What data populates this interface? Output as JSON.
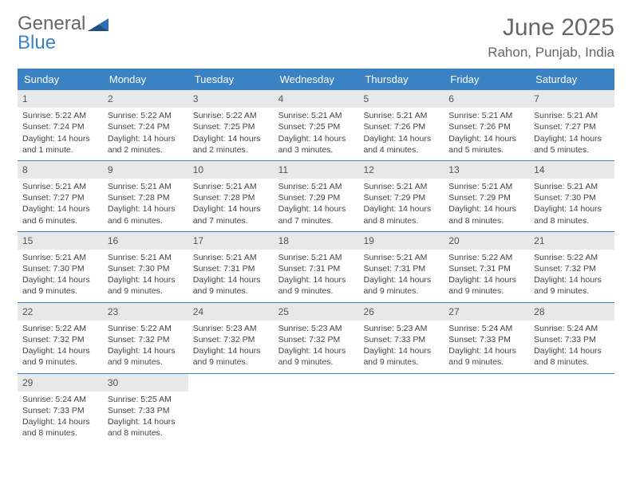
{
  "logo": {
    "word1": "General",
    "word2": "Blue",
    "triangle_color": "#2f6fb0"
  },
  "header": {
    "month_title": "June 2025",
    "location": "Rahon, Punjab, India"
  },
  "colors": {
    "accent": "#3b82c4",
    "daynum_bg": "#e8e8e8"
  },
  "day_labels": [
    "Sunday",
    "Monday",
    "Tuesday",
    "Wednesday",
    "Thursday",
    "Friday",
    "Saturday"
  ],
  "weeks": [
    [
      {
        "n": "1",
        "sr": "Sunrise: 5:22 AM",
        "ss": "Sunset: 7:24 PM",
        "dl": "Daylight: 14 hours and 1 minute."
      },
      {
        "n": "2",
        "sr": "Sunrise: 5:22 AM",
        "ss": "Sunset: 7:24 PM",
        "dl": "Daylight: 14 hours and 2 minutes."
      },
      {
        "n": "3",
        "sr": "Sunrise: 5:22 AM",
        "ss": "Sunset: 7:25 PM",
        "dl": "Daylight: 14 hours and 2 minutes."
      },
      {
        "n": "4",
        "sr": "Sunrise: 5:21 AM",
        "ss": "Sunset: 7:25 PM",
        "dl": "Daylight: 14 hours and 3 minutes."
      },
      {
        "n": "5",
        "sr": "Sunrise: 5:21 AM",
        "ss": "Sunset: 7:26 PM",
        "dl": "Daylight: 14 hours and 4 minutes."
      },
      {
        "n": "6",
        "sr": "Sunrise: 5:21 AM",
        "ss": "Sunset: 7:26 PM",
        "dl": "Daylight: 14 hours and 5 minutes."
      },
      {
        "n": "7",
        "sr": "Sunrise: 5:21 AM",
        "ss": "Sunset: 7:27 PM",
        "dl": "Daylight: 14 hours and 5 minutes."
      }
    ],
    [
      {
        "n": "8",
        "sr": "Sunrise: 5:21 AM",
        "ss": "Sunset: 7:27 PM",
        "dl": "Daylight: 14 hours and 6 minutes."
      },
      {
        "n": "9",
        "sr": "Sunrise: 5:21 AM",
        "ss": "Sunset: 7:28 PM",
        "dl": "Daylight: 14 hours and 6 minutes."
      },
      {
        "n": "10",
        "sr": "Sunrise: 5:21 AM",
        "ss": "Sunset: 7:28 PM",
        "dl": "Daylight: 14 hours and 7 minutes."
      },
      {
        "n": "11",
        "sr": "Sunrise: 5:21 AM",
        "ss": "Sunset: 7:29 PM",
        "dl": "Daylight: 14 hours and 7 minutes."
      },
      {
        "n": "12",
        "sr": "Sunrise: 5:21 AM",
        "ss": "Sunset: 7:29 PM",
        "dl": "Daylight: 14 hours and 8 minutes."
      },
      {
        "n": "13",
        "sr": "Sunrise: 5:21 AM",
        "ss": "Sunset: 7:29 PM",
        "dl": "Daylight: 14 hours and 8 minutes."
      },
      {
        "n": "14",
        "sr": "Sunrise: 5:21 AM",
        "ss": "Sunset: 7:30 PM",
        "dl": "Daylight: 14 hours and 8 minutes."
      }
    ],
    [
      {
        "n": "15",
        "sr": "Sunrise: 5:21 AM",
        "ss": "Sunset: 7:30 PM",
        "dl": "Daylight: 14 hours and 9 minutes."
      },
      {
        "n": "16",
        "sr": "Sunrise: 5:21 AM",
        "ss": "Sunset: 7:30 PM",
        "dl": "Daylight: 14 hours and 9 minutes."
      },
      {
        "n": "17",
        "sr": "Sunrise: 5:21 AM",
        "ss": "Sunset: 7:31 PM",
        "dl": "Daylight: 14 hours and 9 minutes."
      },
      {
        "n": "18",
        "sr": "Sunrise: 5:21 AM",
        "ss": "Sunset: 7:31 PM",
        "dl": "Daylight: 14 hours and 9 minutes."
      },
      {
        "n": "19",
        "sr": "Sunrise: 5:21 AM",
        "ss": "Sunset: 7:31 PM",
        "dl": "Daylight: 14 hours and 9 minutes."
      },
      {
        "n": "20",
        "sr": "Sunrise: 5:22 AM",
        "ss": "Sunset: 7:31 PM",
        "dl": "Daylight: 14 hours and 9 minutes."
      },
      {
        "n": "21",
        "sr": "Sunrise: 5:22 AM",
        "ss": "Sunset: 7:32 PM",
        "dl": "Daylight: 14 hours and 9 minutes."
      }
    ],
    [
      {
        "n": "22",
        "sr": "Sunrise: 5:22 AM",
        "ss": "Sunset: 7:32 PM",
        "dl": "Daylight: 14 hours and 9 minutes."
      },
      {
        "n": "23",
        "sr": "Sunrise: 5:22 AM",
        "ss": "Sunset: 7:32 PM",
        "dl": "Daylight: 14 hours and 9 minutes."
      },
      {
        "n": "24",
        "sr": "Sunrise: 5:23 AM",
        "ss": "Sunset: 7:32 PM",
        "dl": "Daylight: 14 hours and 9 minutes."
      },
      {
        "n": "25",
        "sr": "Sunrise: 5:23 AM",
        "ss": "Sunset: 7:32 PM",
        "dl": "Daylight: 14 hours and 9 minutes."
      },
      {
        "n": "26",
        "sr": "Sunrise: 5:23 AM",
        "ss": "Sunset: 7:33 PM",
        "dl": "Daylight: 14 hours and 9 minutes."
      },
      {
        "n": "27",
        "sr": "Sunrise: 5:24 AM",
        "ss": "Sunset: 7:33 PM",
        "dl": "Daylight: 14 hours and 9 minutes."
      },
      {
        "n": "28",
        "sr": "Sunrise: 5:24 AM",
        "ss": "Sunset: 7:33 PM",
        "dl": "Daylight: 14 hours and 8 minutes."
      }
    ],
    [
      {
        "n": "29",
        "sr": "Sunrise: 5:24 AM",
        "ss": "Sunset: 7:33 PM",
        "dl": "Daylight: 14 hours and 8 minutes."
      },
      {
        "n": "30",
        "sr": "Sunrise: 5:25 AM",
        "ss": "Sunset: 7:33 PM",
        "dl": "Daylight: 14 hours and 8 minutes."
      },
      null,
      null,
      null,
      null,
      null
    ]
  ]
}
